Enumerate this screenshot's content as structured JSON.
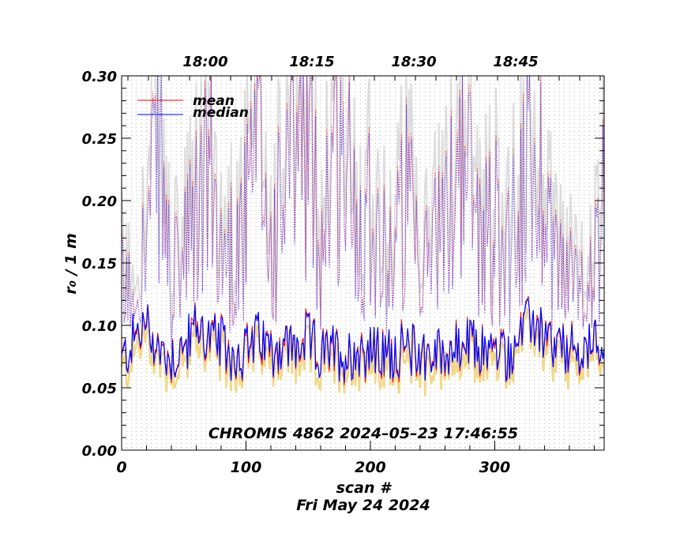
{
  "chart_data": {
    "type": "line",
    "xlabel": "scan #",
    "ylabel": "r₀ / 1 m",
    "date_label": "Fri May 24 2024",
    "annotation": "CHROMIS 4862 2024–05–23 17:46:55",
    "xlim": [
      0,
      388
    ],
    "ylim": [
      0.0,
      0.3
    ],
    "x_ticks": [
      "0",
      "100",
      "200",
      "300"
    ],
    "y_ticks": [
      "0.00",
      "0.05",
      "0.10",
      "0.15",
      "0.20",
      "0.25",
      "0.30"
    ],
    "top_axis_ticks": [
      "18:00",
      "18:15",
      "18:30",
      "18:45"
    ],
    "legend_position": "top-left",
    "grid": true,
    "series": [
      {
        "name": "mean",
        "color": "#ff0000"
      },
      {
        "name": "median",
        "color": "#0000ff"
      }
    ],
    "median_r0_by_scan": {
      "x": [
        0,
        10,
        20,
        30,
        40,
        50,
        60,
        70,
        80,
        90,
        100,
        110,
        120,
        130,
        140,
        150,
        160,
        170,
        180,
        190,
        200,
        210,
        220,
        230,
        240,
        250,
        260,
        270,
        280,
        290,
        300,
        310,
        320,
        330,
        340,
        350,
        360,
        370,
        380,
        388
      ],
      "y": [
        0.07,
        0.09,
        0.1,
        0.08,
        0.075,
        0.08,
        0.1,
        0.09,
        0.085,
        0.075,
        0.08,
        0.09,
        0.08,
        0.085,
        0.08,
        0.09,
        0.075,
        0.08,
        0.075,
        0.08,
        0.08,
        0.075,
        0.08,
        0.08,
        0.08,
        0.075,
        0.08,
        0.08,
        0.085,
        0.08,
        0.08,
        0.075,
        0.09,
        0.105,
        0.09,
        0.08,
        0.08,
        0.075,
        0.085,
        0.09
      ]
    },
    "peak_r0_by_scan": {
      "x": [
        0,
        10,
        20,
        30,
        40,
        50,
        60,
        70,
        80,
        90,
        100,
        110,
        120,
        130,
        140,
        150,
        160,
        170,
        180,
        190,
        200,
        210,
        220,
        230,
        240,
        250,
        260,
        270,
        280,
        290,
        300,
        310,
        320,
        330,
        340,
        350,
        360,
        370,
        380,
        388
      ],
      "y": [
        0.15,
        0.14,
        0.2,
        0.3,
        0.15,
        0.18,
        0.22,
        0.28,
        0.18,
        0.2,
        0.22,
        0.3,
        0.19,
        0.24,
        0.3,
        0.3,
        0.2,
        0.3,
        0.28,
        0.22,
        0.25,
        0.18,
        0.2,
        0.25,
        0.14,
        0.22,
        0.2,
        0.3,
        0.26,
        0.2,
        0.22,
        0.2,
        0.24,
        0.29,
        0.26,
        0.18,
        0.16,
        0.14,
        0.17,
        0.25
      ]
    }
  }
}
